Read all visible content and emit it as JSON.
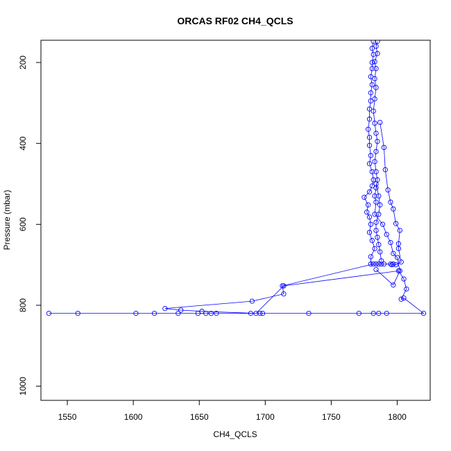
{
  "chart_data": {
    "type": "line",
    "title": "ORCAS RF02 CH4_QCLS",
    "xlabel": "CH4_QCLS",
    "ylabel": "Pressure (mbar)",
    "xlim": [
      1530,
      1825
    ],
    "ylim": [
      1035,
      145
    ],
    "y_reversed": true,
    "x_ticks": [
      1550,
      1600,
      1650,
      1700,
      1750,
      1800
    ],
    "y_ticks": [
      200,
      400,
      600,
      800,
      1000
    ],
    "grid": false,
    "legend": "none",
    "series_color": "#0000ff",
    "marker": "open-circle",
    "series": [
      {
        "points": [
          [
            1782,
            148
          ],
          [
            1781,
            165
          ],
          [
            1782,
            180
          ],
          [
            1781,
            200
          ],
          [
            1781,
            215
          ],
          [
            1780,
            235
          ],
          [
            1781,
            255
          ],
          [
            1780,
            275
          ],
          [
            1780,
            295
          ],
          [
            1779,
            315
          ],
          [
            1779,
            340
          ],
          [
            1778,
            365
          ],
          [
            1779,
            385
          ],
          [
            1779,
            405
          ],
          [
            1780,
            430
          ],
          [
            1779,
            450
          ],
          [
            1781,
            470
          ],
          [
            1782,
            490
          ],
          [
            1781,
            505
          ],
          [
            1779,
            520
          ],
          [
            1775,
            533
          ],
          [
            1778,
            552
          ],
          [
            1777,
            570
          ],
          [
            1779,
            582
          ],
          [
            1780,
            600
          ],
          [
            1779,
            620
          ],
          [
            1781,
            640
          ],
          [
            1783,
            660
          ],
          [
            1780,
            680
          ],
          [
            1780,
            698
          ],
          [
            1784,
            698
          ],
          [
            1788,
            698
          ],
          [
            1797,
            698
          ],
          [
            1795,
            698
          ],
          [
            1790,
            698
          ],
          [
            1786,
            698
          ],
          [
            1782,
            698
          ],
          [
            1713,
            752
          ],
          [
            1714,
            772
          ],
          [
            1690,
            790
          ],
          [
            1624,
            808
          ],
          [
            1636,
            812
          ],
          [
            1652,
            815
          ],
          [
            1693,
            820
          ],
          [
            1714,
            752
          ],
          [
            1801,
            715
          ],
          [
            1805,
            735
          ],
          [
            1807,
            760
          ],
          [
            1803,
            785
          ],
          [
            1805,
            782
          ],
          [
            1820,
            820
          ],
          [
            1792,
            820
          ],
          [
            1786,
            820
          ],
          [
            1782,
            820
          ],
          [
            1771,
            820
          ],
          [
            1733,
            820
          ],
          [
            1698,
            820
          ],
          [
            1696,
            820
          ],
          [
            1689,
            820
          ],
          [
            1663,
            820
          ],
          [
            1659,
            820
          ],
          [
            1655,
            820
          ],
          [
            1649,
            820
          ],
          [
            1634,
            820
          ],
          [
            1616,
            820
          ],
          [
            1602,
            820
          ],
          [
            1558,
            820
          ],
          [
            1536,
            820
          ]
        ]
      },
      {
        "points": [
          [
            1785,
            148
          ],
          [
            1784,
            160
          ],
          [
            1785,
            178
          ],
          [
            1783,
            198
          ],
          [
            1784,
            215
          ],
          [
            1783,
            240
          ],
          [
            1784,
            262
          ],
          [
            1783,
            290
          ],
          [
            1782,
            320
          ],
          [
            1783,
            350
          ],
          [
            1784,
            375
          ],
          [
            1785,
            395
          ],
          [
            1784,
            420
          ],
          [
            1783,
            445
          ],
          [
            1784,
            470
          ],
          [
            1785,
            490
          ],
          [
            1784,
            510
          ],
          [
            1783,
            530
          ],
          [
            1784,
            545
          ],
          [
            1783,
            575
          ],
          [
            1789,
            600
          ],
          [
            1792,
            625
          ],
          [
            1795,
            645
          ],
          [
            1797,
            672
          ],
          [
            1800,
            682
          ],
          [
            1802,
            715
          ],
          [
            1797,
            750
          ],
          [
            1784,
            712
          ]
        ]
      },
      {
        "points": [
          [
            1787,
            348
          ],
          [
            1790,
            410
          ],
          [
            1791,
            465
          ],
          [
            1793,
            515
          ],
          [
            1795,
            545
          ],
          [
            1797,
            562
          ],
          [
            1799,
            598
          ],
          [
            1802,
            615
          ],
          [
            1801,
            648
          ],
          [
            1801,
            660
          ],
          [
            1803,
            693
          ],
          [
            1799,
            700
          ],
          [
            1796,
            700
          ]
        ]
      },
      {
        "points": [
          [
            1784,
            500
          ],
          [
            1786,
            530
          ],
          [
            1787,
            552
          ],
          [
            1786,
            575
          ],
          [
            1784,
            595
          ],
          [
            1784,
            615
          ],
          [
            1785,
            632
          ],
          [
            1786,
            650
          ],
          [
            1787,
            668
          ],
          [
            1788,
            690
          ]
        ]
      }
    ]
  }
}
